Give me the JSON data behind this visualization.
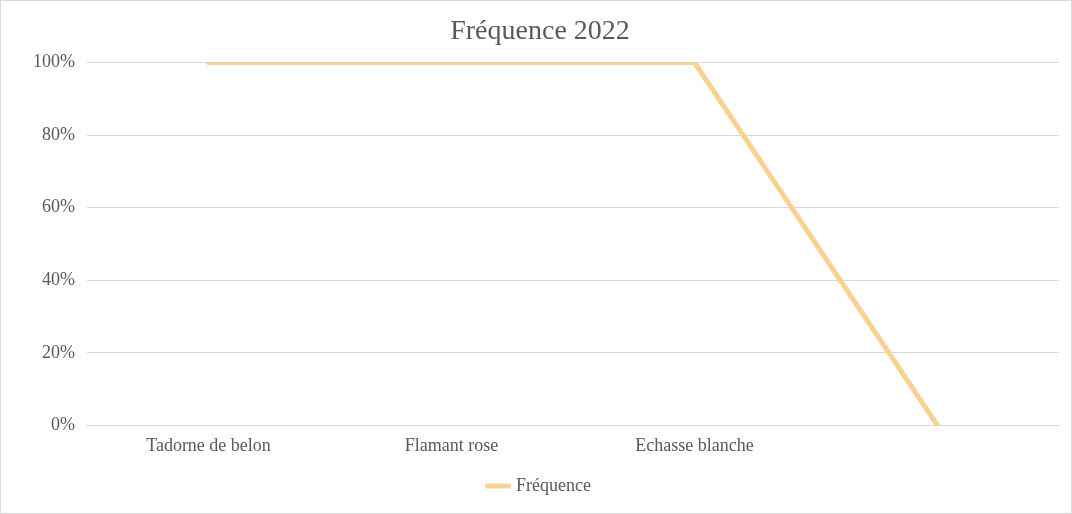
{
  "chart_data": {
    "type": "line",
    "title": "Fréquence 2022",
    "categories": [
      "Tadorne de belon",
      "Flamant rose",
      "Echasse blanche",
      null
    ],
    "series": [
      {
        "name": "Fréquence",
        "color": "#f8d291",
        "values": [
          100,
          100,
          100,
          0
        ]
      }
    ],
    "ylim": [
      0,
      100
    ],
    "yticks": [
      {
        "value": 0,
        "label": "0%"
      },
      {
        "value": 20,
        "label": "20%"
      },
      {
        "value": 40,
        "label": "40%"
      },
      {
        "value": 60,
        "label": "60%"
      },
      {
        "value": 80,
        "label": "80%"
      },
      {
        "value": 100,
        "label": "100%"
      }
    ],
    "grid": "y",
    "legend": "bottom",
    "marker": "none",
    "line_style": "solid"
  }
}
